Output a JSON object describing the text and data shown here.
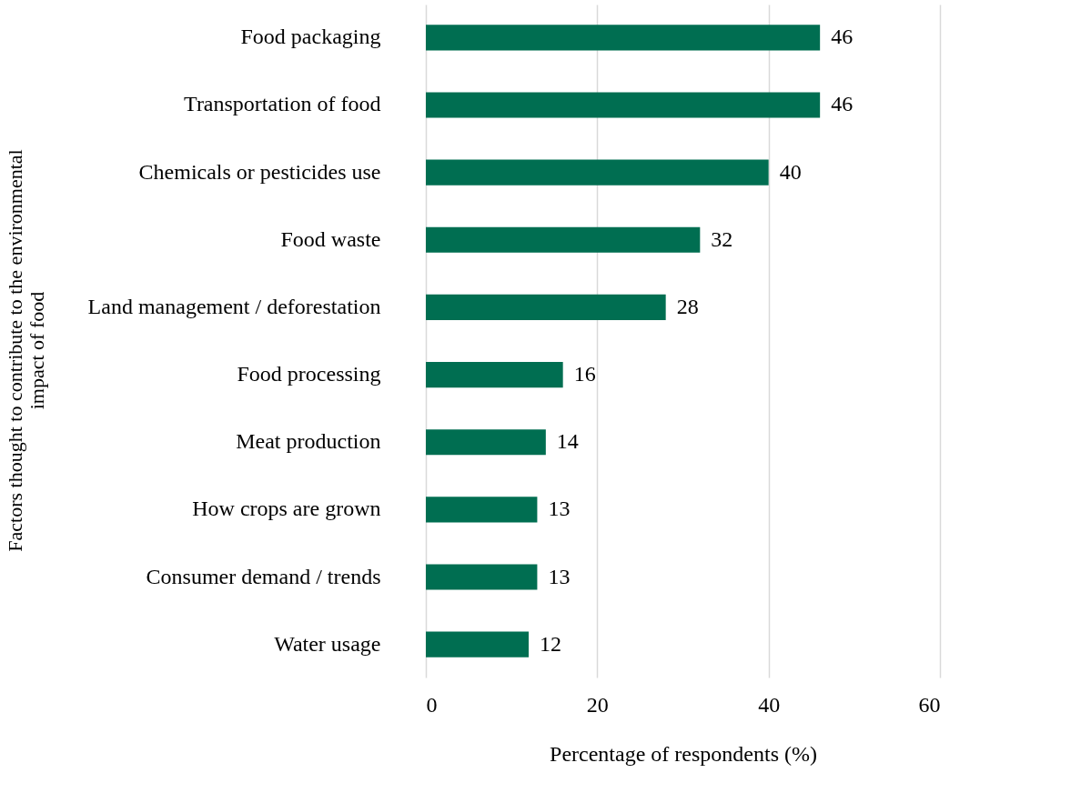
{
  "chart_data": {
    "type": "bar",
    "orientation": "horizontal",
    "xlabel": "Percentage of respondents (%)",
    "ylabel": "Factors thought to contribute to the environmental impact of food",
    "categories": [
      "Food packaging",
      "Transportation of food",
      "Chemicals or pesticides use",
      "Food waste",
      "Land management / deforestation",
      "Food processing",
      "Meat production",
      "How crops are grown",
      "Consumer demand / trends",
      "Water usage"
    ],
    "values": [
      46,
      46,
      40,
      32,
      28,
      16,
      14,
      13,
      13,
      12
    ],
    "color": "#006e51",
    "xlim": [
      0,
      60
    ],
    "xticks": [
      0,
      20,
      40,
      60
    ],
    "grid": "x",
    "data_labels": true
  }
}
